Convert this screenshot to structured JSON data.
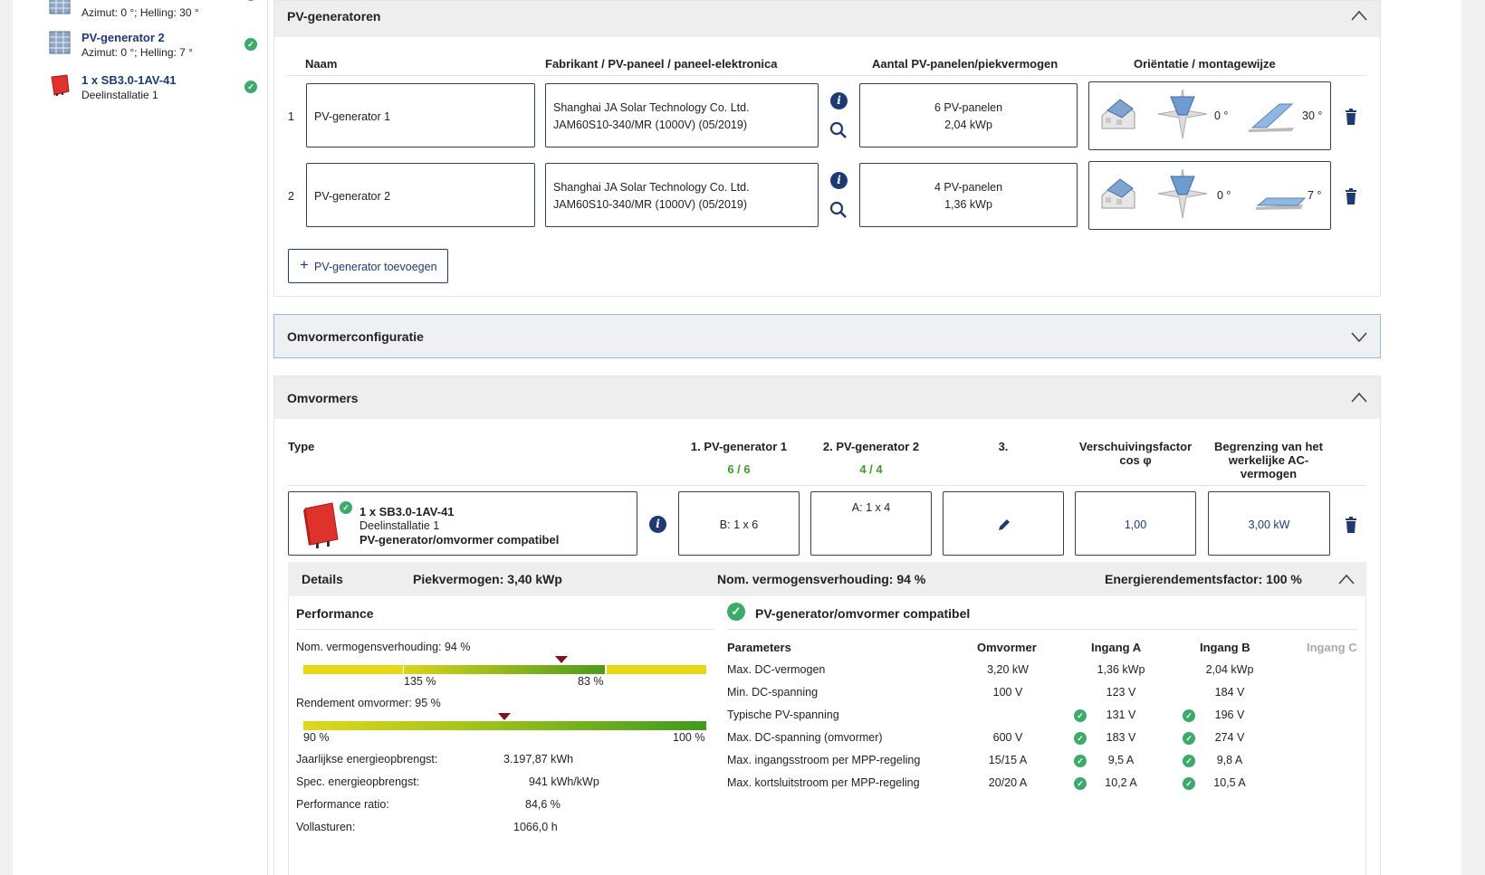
{
  "sidebar": {
    "items": [
      {
        "title": "",
        "subtitle": "Azimut: 0 °; Helling: 30 °"
      },
      {
        "title": "PV-generator 2",
        "subtitle": "Azimut: 0 °; Helling: 7 °"
      },
      {
        "title": "1 x SB3.0-1AV-41",
        "subtitle": "Deelinstallatie 1"
      }
    ]
  },
  "pvgen": {
    "title": "PV-generatoren",
    "col_name": "Naam",
    "col_manufacturer": "Fabrikant / PV-paneel / paneel-elektronica",
    "col_count": "Aantal PV-panelen/piekvermogen",
    "col_orientation": "Oriëntatie / montagewijze",
    "rows": [
      {
        "num": "1",
        "name": "PV-generator 1",
        "manu1": "Shanghai JA Solar Technology Co. Ltd.",
        "manu2": "JAM60S10-340/MR (1000V) (05/2019)",
        "panels": "6 PV-panelen",
        "power": "2,04 kWp",
        "azimuth": "0 °",
        "tilt": "30 °"
      },
      {
        "num": "2",
        "name": "PV-generator 2",
        "manu1": "Shanghai JA Solar Technology Co. Ltd.",
        "manu2": "JAM60S10-340/MR (1000V) (05/2019)",
        "panels": "4 PV-panelen",
        "power": "1,36 kWp",
        "azimuth": "0 °",
        "tilt": "7 °"
      }
    ],
    "add_button": "PV-generator toevoegen"
  },
  "config": {
    "title": "Omvormerconfiguratie"
  },
  "inverters": {
    "title": "Omvormers",
    "col_type": "Type",
    "col_gen1": "1. PV-generator 1",
    "col_gen1_count": "6 / 6",
    "col_gen2": "2. PV-generator 2",
    "col_gen2_count": "4 / 4",
    "col_3": "3.",
    "col_cos1": "Verschuivingsfactor",
    "col_cos2": "cos φ",
    "col_lim1": "Begrenzing van het",
    "col_lim2": "werkelijke AC-",
    "col_lim3": "vermogen",
    "inverter_name": "1 x SB3.0-1AV-41",
    "inverter_sub": "Deelinstallatie 1",
    "inverter_compat": "PV-generator/omvormer compatibel",
    "gen1_value": "B: 1 x 6",
    "gen2_value": "A: 1 x 4",
    "cos_value": "1,00",
    "limit_value": "3,00 kW"
  },
  "details": {
    "label": "Details",
    "peak": "Piekvermogen: 3,40 kWp",
    "ratio": "Nom. vermogensverhouding: 94 %",
    "energy": "Energierendementsfactor: 100 %"
  },
  "performance": {
    "title": "Performance",
    "ratio_label": "Nom. vermogensverhouding: 94 %",
    "ratio_value": 94,
    "bar1_left": "135 %",
    "bar1_right": "83 %",
    "eff_label": "Rendement omvormer: 95 %",
    "eff_value": 95,
    "bar2_left": "90 %",
    "bar2_right": "100 %",
    "rows": [
      {
        "label": "Jaarlijkse energieopbrengst:",
        "value": "3.197,87 kWh"
      },
      {
        "label": "Spec. energieopbrengst:",
        "value": "941 kWh/kWp"
      },
      {
        "label": "Performance ratio:",
        "value": "84,6 %"
      },
      {
        "label": "Vollasturen:",
        "value": "1066,0 h"
      }
    ]
  },
  "compat": {
    "title": "PV-generator/omvormer compatibel",
    "headers": {
      "param": "Parameters",
      "inv": "Omvormer",
      "a": "Ingang A",
      "b": "Ingang B",
      "c": "Ingang C"
    },
    "rows": [
      {
        "param": "Max. DC-vermogen",
        "inv": "3,20 kW",
        "a": "1,36 kWp",
        "b": "2,04 kWp",
        "check": false
      },
      {
        "param": "Min. DC-spanning",
        "inv": "100 V",
        "a": "123 V",
        "b": "184 V",
        "check": false
      },
      {
        "param": "Typische PV-spanning",
        "inv": "",
        "a": "131 V",
        "b": "196 V",
        "check": true
      },
      {
        "param": "Max. DC-spanning (omvormer)",
        "inv": "600 V",
        "a": "183 V",
        "b": "274 V",
        "check": true
      },
      {
        "param": "Max. ingangsstroom per MPP-regeling",
        "inv": "15/15 A",
        "a": "9,5 A",
        "b": "9,8 A",
        "check": true
      },
      {
        "param": "Max. kortsluitstroom per MPP-regeling",
        "inv": "20/20 A",
        "a": "10,2 A",
        "b": "10,5 A",
        "check": true
      }
    ]
  },
  "colors": {
    "accent": "#1f3a73",
    "check": "#3daa6b",
    "marker": "#7a1324"
  }
}
